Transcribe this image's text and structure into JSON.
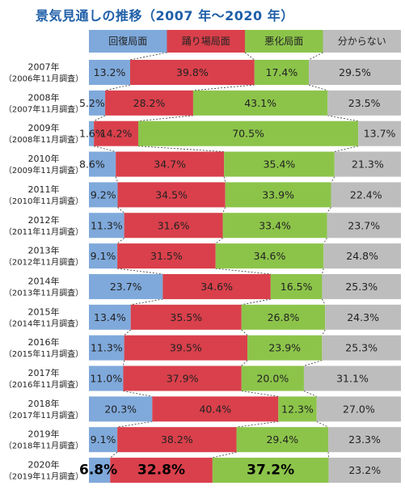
{
  "title": "景気見通しの推移（2007 年～2020 年）",
  "colors": {
    "recovery": "#7fa9db",
    "plateau": "#d9404b",
    "worsening": "#8cc44a",
    "unknown": "#bdbdbd",
    "title": "#1f5fa8"
  },
  "chart_data": {
    "type": "bar",
    "stacked": true,
    "orientation": "horizontal",
    "categories": [
      "回復局面",
      "踊り場局面",
      "悪化局面",
      "分からない"
    ],
    "rows": [
      {
        "year": "2007年",
        "survey": "（2006年11月調査）",
        "values": [
          13.2,
          39.8,
          17.4,
          29.5
        ]
      },
      {
        "year": "2008年",
        "survey": "（2007年11月調査）",
        "values": [
          5.2,
          28.2,
          43.1,
          23.5
        ]
      },
      {
        "year": "2009年",
        "survey": "（2008年11月調査）",
        "values": [
          1.6,
          14.2,
          70.5,
          13.7
        ]
      },
      {
        "year": "2010年",
        "survey": "（2009年11月調査）",
        "values": [
          8.6,
          34.7,
          35.4,
          21.3
        ]
      },
      {
        "year": "2011年",
        "survey": "（2010年11月調査）",
        "values": [
          9.2,
          34.5,
          33.9,
          22.4
        ]
      },
      {
        "year": "2012年",
        "survey": "（2011年11月調査）",
        "values": [
          11.3,
          31.6,
          33.4,
          23.7
        ]
      },
      {
        "year": "2013年",
        "survey": "（2012年11月調査）",
        "values": [
          9.1,
          31.5,
          34.6,
          24.8
        ]
      },
      {
        "year": "2014年",
        "survey": "（2013年11月調査）",
        "values": [
          23.7,
          34.6,
          16.5,
          25.3
        ]
      },
      {
        "year": "2015年",
        "survey": "（2014年11月調査）",
        "values": [
          13.4,
          35.5,
          26.8,
          24.3
        ]
      },
      {
        "year": "2016年",
        "survey": "（2015年11月調査）",
        "values": [
          11.3,
          39.5,
          23.9,
          25.3
        ]
      },
      {
        "year": "2017年",
        "survey": "（2016年11月調査）",
        "values": [
          11.0,
          37.9,
          20.0,
          31.1
        ]
      },
      {
        "year": "2018年",
        "survey": "（2017年11月調査）",
        "values": [
          20.3,
          40.4,
          12.3,
          27.0
        ]
      },
      {
        "year": "2019年",
        "survey": "（2018年11月調査）",
        "values": [
          9.1,
          38.2,
          29.4,
          23.3
        ]
      },
      {
        "year": "2020年",
        "survey": "（2019年11月調査）",
        "values": [
          6.8,
          32.8,
          37.2,
          23.2
        ]
      }
    ],
    "value_format": "percent_1dp",
    "highlight_last_row": true,
    "connectors": "dashed"
  }
}
